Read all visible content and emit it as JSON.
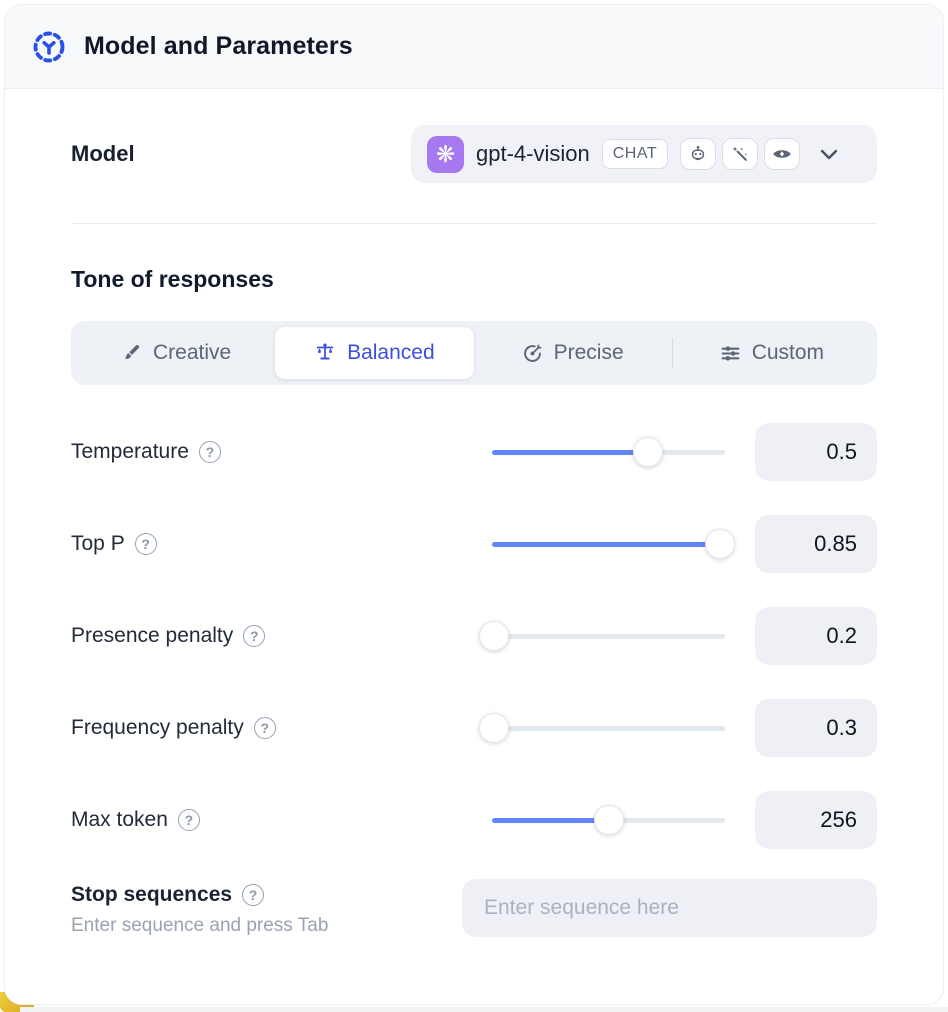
{
  "header": {
    "title": "Model and Parameters"
  },
  "model": {
    "label": "Model",
    "name": "gpt-4-vision",
    "type_badge": "CHAT",
    "capability_icons": [
      "assistant-bot",
      "magic-wand",
      "vision-eye"
    ]
  },
  "tone": {
    "heading": "Tone of responses",
    "tabs": [
      {
        "label": "Creative",
        "icon": "paintbrush-icon",
        "active": false
      },
      {
        "label": "Balanced",
        "icon": "balance-scale-icon",
        "active": true
      },
      {
        "label": "Precise",
        "icon": "target-icon",
        "active": false
      },
      {
        "label": "Custom",
        "icon": "sliders-icon",
        "active": false
      }
    ]
  },
  "parameters": [
    {
      "label": "Temperature",
      "value": "0.5",
      "slider_percent": 67
    },
    {
      "label": "Top P",
      "value": "0.85",
      "slider_percent": 98
    },
    {
      "label": "Presence penalty",
      "value": "0.2",
      "slider_percent": 1
    },
    {
      "label": "Frequency penalty",
      "value": "0.3",
      "slider_percent": 1
    },
    {
      "label": "Max token",
      "value": "256",
      "slider_percent": 50
    }
  ],
  "stop_sequences": {
    "label": "Stop sequences",
    "hint": "Enter sequence and press Tab",
    "placeholder": "Enter sequence here"
  },
  "help_glyph": "?",
  "colors": {
    "accent_blue": "#2b50e8",
    "active_indigo": "#3d4fe0",
    "slider_blue": "#6385fb",
    "header_bg": "#f8f9fb",
    "chip_bg": "#f0f2f7",
    "value_bg": "#eef0f5",
    "yellow_accent": "#e0b92c",
    "model_logo_purple": "#a679f0"
  }
}
